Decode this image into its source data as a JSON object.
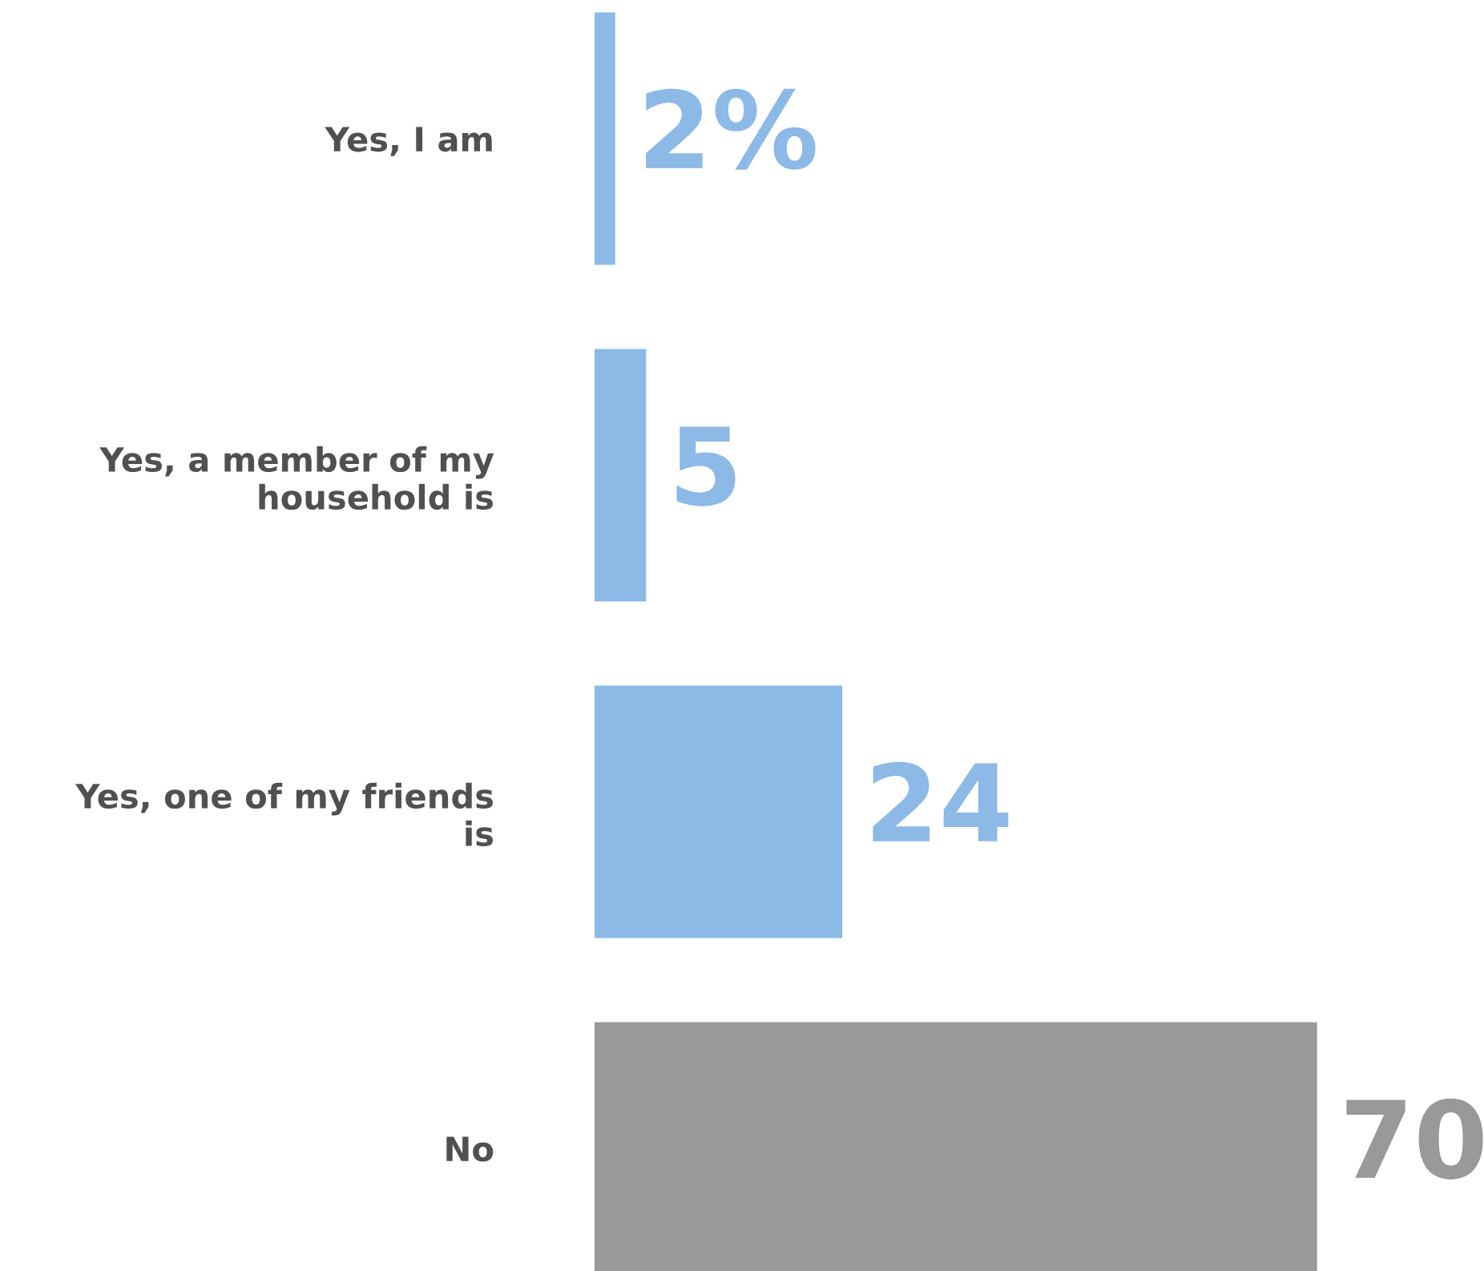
{
  "chart_data": {
    "type": "bar",
    "orientation": "horizontal",
    "categories": [
      "Yes, I am",
      "Yes, a member of my\nhousehold is",
      "Yes, one of my friends\nis",
      "No"
    ],
    "values": [
      2,
      5,
      24,
      70
    ],
    "colors": [
      "#8cb9e6",
      "#8cb9e6",
      "#8cb9e6",
      "#999999"
    ],
    "value_labels": [
      "2%",
      "5",
      "24",
      "70"
    ],
    "grid": false,
    "legend": false
  }
}
